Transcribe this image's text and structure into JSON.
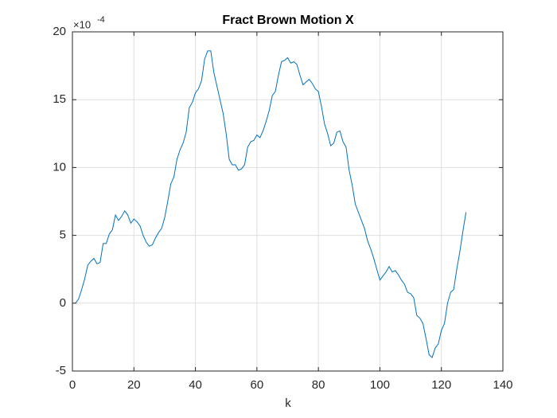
{
  "chart_data": {
    "type": "line",
    "title": "Fract Brown Motion X",
    "xlabel": "k",
    "y_exponent_base": "×10",
    "y_exponent": "-4",
    "x": [
      1,
      2,
      3,
      4,
      5,
      6,
      7,
      8,
      9,
      10,
      11,
      12,
      13,
      14,
      15,
      16,
      17,
      18,
      19,
      20,
      21,
      22,
      23,
      24,
      25,
      26,
      27,
      28,
      29,
      30,
      31,
      32,
      33,
      34,
      35,
      36,
      37,
      38,
      39,
      40,
      41,
      42,
      43,
      44,
      45,
      46,
      47,
      48,
      49,
      50,
      51,
      52,
      53,
      54,
      55,
      56,
      57,
      58,
      59,
      60,
      61,
      62,
      63,
      64,
      65,
      66,
      67,
      68,
      69,
      70,
      71,
      72,
      73,
      74,
      75,
      76,
      77,
      78,
      79,
      80,
      81,
      82,
      83,
      84,
      85,
      86,
      87,
      88,
      89,
      90,
      91,
      92,
      93,
      94,
      95,
      96,
      97,
      98,
      99,
      100,
      101,
      102,
      103,
      104,
      105,
      106,
      107,
      108,
      109,
      110,
      111,
      112,
      113,
      114,
      115,
      116,
      117,
      118,
      119,
      120,
      121,
      122,
      123,
      124,
      125,
      126,
      127,
      128
    ],
    "series": [
      {
        "color": "#0072bd",
        "values": [
          0,
          0.3,
          1.0,
          1.8,
          2.8,
          3.1,
          3.3,
          2.9,
          3.0,
          4.4,
          4.4,
          5.1,
          5.4,
          6.5,
          6.1,
          6.4,
          6.8,
          6.5,
          5.9,
          6.2,
          6.0,
          5.7,
          5.0,
          4.5,
          4.2,
          4.3,
          4.8,
          5.2,
          5.5,
          6.3,
          7.5,
          8.8,
          9.3,
          10.6,
          11.3,
          11.8,
          12.6,
          14.4,
          14.8,
          15.5,
          15.8,
          16.4,
          18.0,
          18.6,
          18.6,
          17.0,
          16.0,
          15.0,
          14.0,
          12.5,
          10.6,
          10.2,
          10.2,
          9.8,
          9.9,
          10.2,
          11.5,
          11.9,
          12.0,
          12.4,
          12.2,
          12.7,
          13.4,
          14.2,
          15.3,
          15.6,
          16.8,
          17.8,
          17.9,
          18.1,
          17.7,
          17.8,
          17.6,
          16.8,
          16.1,
          16.3,
          16.5,
          16.2,
          15.8,
          15.6,
          14.5,
          13.2,
          12.5,
          11.6,
          11.8,
          12.6,
          12.7,
          11.9,
          11.5,
          9.8,
          8.7,
          7.3,
          6.7,
          6.1,
          5.5,
          4.6,
          4.0,
          3.3,
          2.5,
          1.7,
          2.0,
          2.3,
          2.7,
          2.3,
          2.4,
          2.1,
          1.7,
          1.4,
          0.8,
          0.7,
          0.4,
          -0.9,
          -1.1,
          -1.5,
          -2.6,
          -3.8,
          -4.0,
          -3.3,
          -3.0,
          -2.0,
          -1.5,
          0.0,
          0.8,
          1.0,
          2.5,
          3.8,
          5.3,
          6.7
        ]
      }
    ],
    "xlim": [
      0,
      140
    ],
    "xticks": [
      0,
      20,
      40,
      60,
      80,
      100,
      120,
      140
    ],
    "ylim": [
      -5,
      20
    ],
    "yticks": [
      -5,
      0,
      5,
      10,
      15,
      20
    ],
    "grid": true
  }
}
